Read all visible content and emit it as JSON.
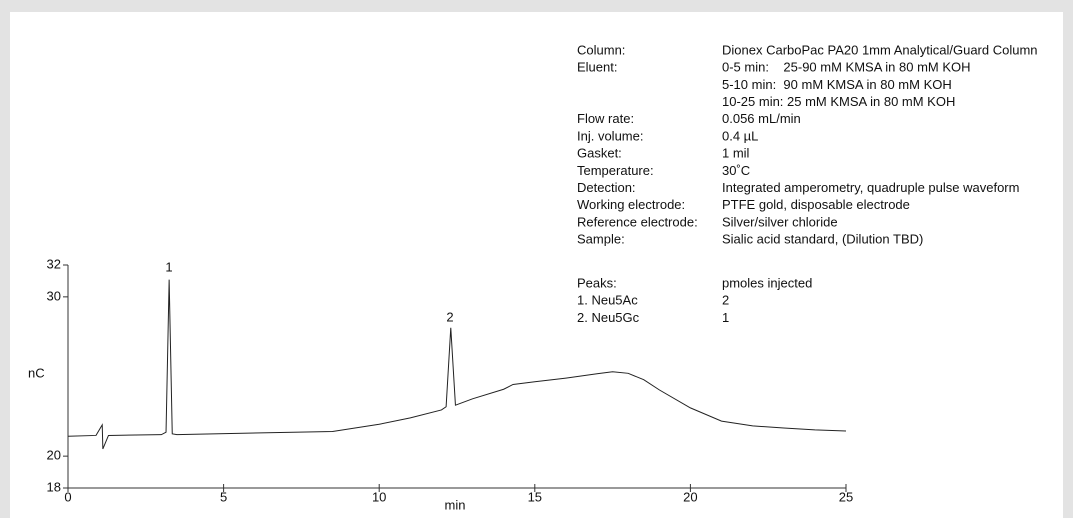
{
  "chart_data": {
    "type": "line",
    "x_label": "min",
    "y_label": "nC",
    "xlim": [
      0,
      25
    ],
    "ylim": [
      18,
      32
    ],
    "xticks": [
      0,
      5,
      10,
      15,
      20,
      25
    ],
    "yticks": [
      18,
      20,
      30,
      32
    ],
    "x": [
      0,
      0.9,
      1.1,
      1.12,
      1.3,
      3.0,
      3.15,
      3.25,
      3.35,
      3.5,
      8.5,
      10,
      11,
      12,
      12.15,
      12.3,
      12.45,
      13,
      14,
      14.3,
      15,
      16,
      17,
      17.5,
      18,
      18.5,
      19,
      20,
      21,
      22,
      23,
      24,
      25
    ],
    "series": [
      {
        "color": "#222222",
        "values": [
          21.25,
          21.3,
          21.96,
          20.45,
          21.3,
          21.35,
          21.5,
          31.08,
          21.4,
          21.35,
          21.55,
          22.0,
          22.4,
          22.9,
          23.1,
          28.06,
          23.2,
          23.6,
          24.2,
          24.5,
          24.67,
          24.9,
          25.17,
          25.3,
          25.2,
          24.8,
          24.16,
          23.03,
          22.2,
          21.9,
          21.77,
          21.65,
          21.58
        ]
      }
    ],
    "peak_labels": [
      "1",
      "2"
    ],
    "conditions": [
      {
        "label": "Column:",
        "value": [
          "Dionex CarboPac PA20 1mm Analytical/Guard Column"
        ]
      },
      {
        "label": "Eluent:",
        "value": [
          "0-5 min:    25-90 mM KMSA in 80 mM KOH",
          "5-10 min:  90 mM KMSA in 80 mM KOH",
          "10-25 min: 25 mM KMSA in 80 mM KOH"
        ]
      },
      {
        "label": "Flow rate:",
        "value": [
          "0.056 mL/min"
        ]
      },
      {
        "label": "Inj. volume:",
        "value": [
          "0.4 µL"
        ]
      },
      {
        "label": "Gasket:",
        "value": [
          "1 mil"
        ]
      },
      {
        "label": "Temperature:",
        "value": [
          "30˚C"
        ]
      },
      {
        "label": "Detection:",
        "value": [
          "Integrated amperometry, quadruple pulse waveform"
        ]
      },
      {
        "label": "Working electrode:",
        "value": [
          "PTFE gold, disposable electrode"
        ]
      },
      {
        "label": "Reference electrode:",
        "value": [
          "Silver/silver chloride"
        ]
      },
      {
        "label": "Sample:",
        "value": [
          "Sialic acid standard, (Dilution TBD)"
        ]
      }
    ],
    "peaks_table": {
      "header": [
        "Peaks:",
        "pmoles injected"
      ],
      "rows": [
        [
          "1. Neu5Ac",
          "2"
        ],
        [
          "2. Neu5Gc",
          "1"
        ]
      ]
    }
  }
}
